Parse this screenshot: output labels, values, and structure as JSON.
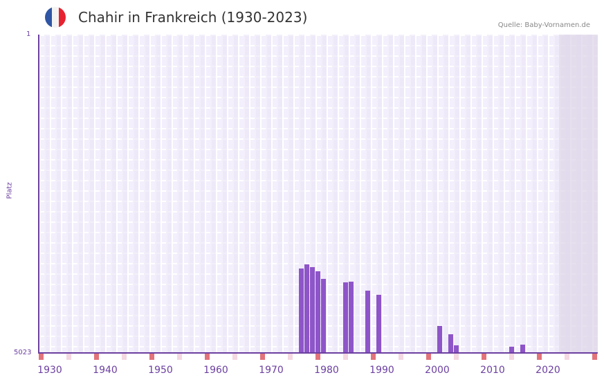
{
  "header": {
    "title": "Chahir in Frankreich (1930-2023)",
    "source": "Quelle: Baby-Vornamen.de",
    "flag_colors": [
      "#2f55a4",
      "#f3f3f3",
      "#e62230"
    ]
  },
  "colors": {
    "bar": "#8e55c8",
    "axis": "#6b3fa0",
    "decade_marker": "#e2737b",
    "half_decade_marker": "#f4d8e2",
    "grid_bg": "#f3effc",
    "future_shade": "#ddd6e8"
  },
  "chart_data": {
    "type": "bar",
    "title": "Chahir in Frankreich (1930-2023)",
    "xlabel": "",
    "ylabel": "Platz",
    "y_inverted": true,
    "ylim": [
      1,
      5023
    ],
    "y_tick_labels": [
      "1",
      "5023"
    ],
    "x_tick_labels": [
      "1930",
      "1940",
      "1950",
      "1960",
      "1970",
      "1980",
      "1990",
      "2000",
      "2010",
      "2020"
    ],
    "x_range": [
      1929,
      2029
    ],
    "grid": true,
    "categories": [
      "1976",
      "1977",
      "1978",
      "1979",
      "1980",
      "1984",
      "1985",
      "1988",
      "1990",
      "2001",
      "2003",
      "2004",
      "2014",
      "2016"
    ],
    "values": [
      3690,
      3624,
      3668,
      3734,
      3854,
      3909,
      3898,
      4040,
      4106,
      4597,
      4728,
      4903,
      4925,
      4892
    ],
    "annotations": [
      "Quelle: Baby-Vornamen.de"
    ]
  }
}
